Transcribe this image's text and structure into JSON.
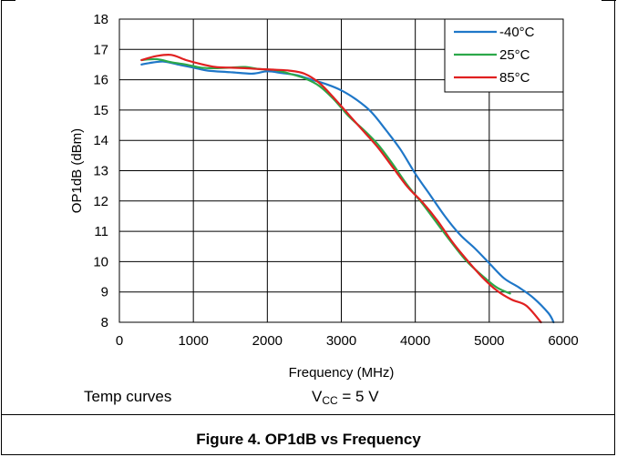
{
  "chart_data": {
    "type": "line",
    "xlabel": "Frequency (MHz)",
    "ylabel": "OP1dB (dBm)",
    "xlim": [
      0,
      6000
    ],
    "ylim": [
      8,
      18
    ],
    "x_ticks": [
      "0",
      "1000",
      "2000",
      "3000",
      "4000",
      "5000",
      "6000"
    ],
    "y_ticks": [
      "8",
      "9",
      "10",
      "11",
      "12",
      "13",
      "14",
      "15",
      "16",
      "17",
      "18"
    ],
    "grid": true,
    "legend_position": "top-right",
    "series": [
      {
        "name": "-40°C",
        "color": "#1f77c8",
        "x": [
          300,
          400,
          600,
          800,
          1000,
          1200,
          1500,
          1800,
          2000,
          2200,
          2400,
          2600,
          2800,
          3000,
          3200,
          3400,
          3600,
          3800,
          4000,
          4200,
          4400,
          4600,
          4800,
          5000,
          5200,
          5400,
          5600,
          5800,
          5870
        ],
        "y": [
          16.5,
          16.55,
          16.6,
          16.5,
          16.4,
          16.3,
          16.25,
          16.2,
          16.28,
          16.22,
          16.15,
          16.0,
          15.85,
          15.65,
          15.35,
          14.95,
          14.35,
          13.7,
          12.9,
          12.2,
          11.5,
          10.9,
          10.45,
          9.95,
          9.45,
          9.15,
          8.8,
          8.3,
          8.0
        ]
      },
      {
        "name": "25°C",
        "color": "#2ca84a",
        "x": [
          300,
          500,
          700,
          900,
          1100,
          1300,
          1500,
          1700,
          1900,
          2100,
          2300,
          2500,
          2700,
          2900,
          3100,
          3300,
          3500,
          3700,
          3900,
          4100,
          4300,
          4500,
          4700,
          4900,
          5100,
          5280
        ],
        "y": [
          16.65,
          16.68,
          16.58,
          16.5,
          16.4,
          16.38,
          16.4,
          16.42,
          16.35,
          16.32,
          16.2,
          16.05,
          15.8,
          15.35,
          14.8,
          14.35,
          13.85,
          13.2,
          12.5,
          11.9,
          11.25,
          10.6,
          10.0,
          9.55,
          9.15,
          8.95
        ]
      },
      {
        "name": "85°C",
        "color": "#e02020",
        "x": [
          300,
          500,
          700,
          900,
          1100,
          1300,
          1500,
          1700,
          1900,
          2100,
          2300,
          2500,
          2700,
          2900,
          3100,
          3300,
          3500,
          3700,
          3900,
          4100,
          4300,
          4500,
          4700,
          4900,
          5100,
          5300,
          5500,
          5700
        ],
        "y": [
          16.65,
          16.78,
          16.82,
          16.65,
          16.52,
          16.42,
          16.4,
          16.38,
          16.35,
          16.33,
          16.3,
          16.2,
          15.9,
          15.4,
          14.85,
          14.3,
          13.75,
          13.1,
          12.45,
          11.95,
          11.35,
          10.65,
          10.05,
          9.5,
          9.05,
          8.75,
          8.55,
          7.95
        ]
      }
    ]
  },
  "notes": {
    "left": "Temp curves",
    "vcc_main": "V",
    "vcc_sub": "CC",
    "vcc_rest": " = 5 V"
  },
  "caption": "Figure 4.  OP1dB vs Frequency"
}
